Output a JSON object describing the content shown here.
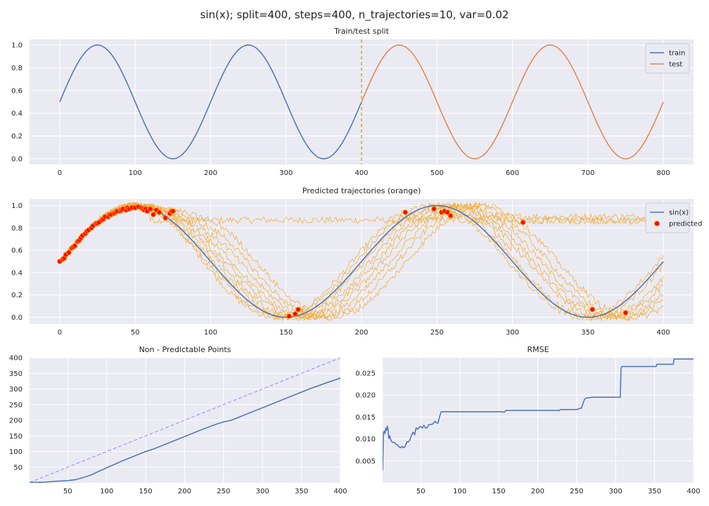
{
  "figure": {
    "suptitle": "sin(x); split=400, steps=400, n_trajectories=10, var=0.02"
  },
  "colors": {
    "background": "#eaeaf2",
    "grid": "#ffffff",
    "blue": "#4c72b0",
    "orange": "#dd8452",
    "traj": "#f5a623",
    "split_line": "#f0a020",
    "pred_face": "#ff0000",
    "pred_edge": "#ff8c00",
    "diag": "#9999ff"
  },
  "chart_data": [
    {
      "id": "train-test",
      "type": "line",
      "title": "Train/test split",
      "xlim": [
        -40,
        840
      ],
      "ylim": [
        -0.05,
        1.05
      ],
      "xticks": [
        0,
        100,
        200,
        300,
        400,
        500,
        600,
        700,
        800
      ],
      "yticks": [
        0.0,
        0.2,
        0.4,
        0.6,
        0.8,
        1.0
      ],
      "ytick_labels": [
        "0.0",
        "0.2",
        "0.4",
        "0.6",
        "0.8",
        "1.0"
      ],
      "function": "0.5 + 0.5*sin(2*pi*x/200)",
      "series": [
        {
          "name": "train",
          "x_range": [
            0,
            400
          ],
          "color": "#4c72b0"
        },
        {
          "name": "test",
          "x_range": [
            400,
            800
          ],
          "color": "#dd8452"
        }
      ],
      "vline": {
        "x": 400,
        "style": "dashed",
        "color": "#f0a020"
      },
      "legend": "top-right"
    },
    {
      "id": "trajectories",
      "type": "line",
      "title": "Predicted trajectories (orange)",
      "xlim": [
        -20,
        420
      ],
      "ylim": [
        -0.06,
        1.06
      ],
      "xticks": [
        0,
        50,
        100,
        150,
        200,
        250,
        300,
        350,
        400
      ],
      "yticks": [
        0.0,
        0.2,
        0.4,
        0.6,
        0.8,
        1.0
      ],
      "ytick_labels": [
        "0.0",
        "0.2",
        "0.4",
        "0.6",
        "0.8",
        "1.0"
      ],
      "series": [
        {
          "name": "sin(x)",
          "function": "0.5 + 0.5*sin(2*pi*x/200)",
          "x_range": [
            0,
            400
          ],
          "color": "#4c72b0"
        }
      ],
      "trajectories": [
        {
          "id": 1,
          "phase_shift": 0,
          "plateau": 0.87,
          "plateau_from": 60
        },
        {
          "id": 2,
          "phase_shift": -6,
          "plateau": 0.9,
          "plateau_from": 230
        },
        {
          "id": 3,
          "phase_shift": -3,
          "plateau": null,
          "plateau_from": null
        },
        {
          "id": 4,
          "phase_shift": 2,
          "plateau": null,
          "plateau_from": null
        },
        {
          "id": 5,
          "phase_shift": 6,
          "plateau": 0.86,
          "plateau_from": 300
        },
        {
          "id": 6,
          "phase_shift": 10,
          "plateau": null,
          "plateau_from": null
        },
        {
          "id": 7,
          "phase_shift": 14,
          "plateau": null,
          "plateau_from": null
        },
        {
          "id": 8,
          "phase_shift": 19,
          "plateau": null,
          "plateau_from": null
        },
        {
          "id": 9,
          "phase_shift": 24,
          "plateau": null,
          "plateau_from": null
        },
        {
          "id": 10,
          "phase_shift": 30,
          "plateau": null,
          "plateau_from": null
        }
      ],
      "predicted_points": {
        "name": "predicted",
        "x": [
          0,
          2,
          3,
          4,
          6,
          8,
          9,
          10,
          12,
          13,
          14,
          15,
          17,
          18,
          19,
          21,
          22,
          24,
          25,
          26,
          28,
          29,
          30,
          32,
          33,
          34,
          36,
          37,
          38,
          40,
          41,
          42,
          44,
          45,
          46,
          48,
          50,
          52,
          54,
          55,
          56,
          57,
          58,
          60,
          62,
          64,
          66,
          70,
          73,
          74,
          75,
          152,
          156,
          158,
          229,
          248,
          253,
          255,
          257,
          259,
          307,
          353,
          375
        ],
        "y": [
          0.5,
          0.52,
          0.53,
          0.56,
          0.58,
          0.62,
          0.63,
          0.64,
          0.68,
          0.69,
          0.71,
          0.73,
          0.75,
          0.77,
          0.78,
          0.8,
          0.82,
          0.84,
          0.84,
          0.85,
          0.87,
          0.88,
          0.9,
          0.9,
          0.92,
          0.92,
          0.93,
          0.94,
          0.95,
          0.95,
          0.96,
          0.97,
          0.96,
          0.98,
          0.97,
          0.98,
          0.98,
          0.99,
          0.98,
          0.97,
          0.96,
          0.97,
          0.95,
          0.97,
          0.92,
          0.96,
          0.94,
          0.89,
          0.93,
          0.95,
          0.95,
          0.01,
          0.03,
          0.07,
          0.94,
          0.97,
          0.94,
          0.95,
          0.94,
          0.91,
          0.85,
          0.07,
          0.04
        ]
      },
      "legend": "top-right"
    },
    {
      "id": "non-predictable",
      "type": "line",
      "title": "Non - Predictable Points",
      "xlim": [
        1,
        400
      ],
      "ylim": [
        0,
        400
      ],
      "xticks": [
        50,
        100,
        150,
        200,
        250,
        300,
        350,
        400
      ],
      "yticks": [
        50,
        100,
        150,
        200,
        250,
        300,
        350,
        400
      ],
      "series": [
        {
          "name": "",
          "color": "#4c72b0",
          "x": [
            1,
            20,
            35,
            50,
            60,
            70,
            80,
            90,
            100,
            120,
            140,
            150,
            160,
            180,
            200,
            220,
            240,
            250,
            260,
            280,
            300,
            320,
            340,
            360,
            380,
            400
          ],
          "y": [
            1,
            2,
            5,
            7,
            10,
            17,
            25,
            37,
            48,
            70,
            90,
            100,
            108,
            128,
            148,
            168,
            187,
            195,
            200,
            220,
            240,
            260,
            280,
            300,
            318,
            335
          ]
        }
      ],
      "diagonal": {
        "style": "dashed",
        "color": "#9999ff",
        "from": [
          1,
          1
        ],
        "to": [
          400,
          400
        ]
      }
    },
    {
      "id": "rmse",
      "type": "line",
      "title": "RMSE",
      "xlim": [
        1,
        400
      ],
      "ylim": [
        0.0,
        0.0285
      ],
      "xticks": [
        50,
        100,
        150,
        200,
        250,
        300,
        350,
        400
      ],
      "yticks": [
        0.005,
        0.01,
        0.015,
        0.02,
        0.025
      ],
      "ytick_labels": [
        "0.005",
        "0.010",
        "0.015",
        "0.020",
        "0.025"
      ],
      "series": [
        {
          "name": "",
          "color": "#4c72b0",
          "x": [
            1,
            2,
            3,
            4,
            5,
            6,
            7,
            8,
            9,
            10,
            12,
            14,
            16,
            18,
            20,
            22,
            24,
            26,
            28,
            30,
            32,
            34,
            36,
            38,
            40,
            42,
            44,
            46,
            48,
            50,
            52,
            54,
            56,
            58,
            60,
            62,
            64,
            66,
            68,
            70,
            72,
            74,
            76,
            80,
            90,
            100,
            110,
            120,
            130,
            140,
            150,
            155,
            156,
            157,
            158,
            159,
            160,
            170,
            180,
            190,
            200,
            210,
            220,
            228,
            229,
            230,
            240,
            250,
            252,
            254,
            256,
            258,
            260,
            262,
            270,
            280,
            290,
            300,
            306,
            307,
            308,
            320,
            330,
            340,
            350,
            352,
            353,
            360,
            370,
            374,
            375,
            380,
            390,
            400
          ],
          "y": [
            0.0028,
            0.0115,
            0.0117,
            0.0113,
            0.0123,
            0.012,
            0.013,
            0.012,
            0.01,
            0.0108,
            0.0095,
            0.0092,
            0.0092,
            0.0088,
            0.0086,
            0.0082,
            0.008,
            0.0083,
            0.008,
            0.0083,
            0.0093,
            0.0093,
            0.0098,
            0.0108,
            0.0115,
            0.011,
            0.0125,
            0.0122,
            0.0127,
            0.0128,
            0.0125,
            0.0131,
            0.0125,
            0.0125,
            0.0132,
            0.0133,
            0.0133,
            0.0135,
            0.014,
            0.0137,
            0.0136,
            0.015,
            0.0162,
            0.0162,
            0.0162,
            0.0162,
            0.0162,
            0.0162,
            0.0162,
            0.0162,
            0.0162,
            0.0162,
            0.0161,
            0.0161,
            0.0162,
            0.0165,
            0.0165,
            0.0165,
            0.0165,
            0.0165,
            0.0165,
            0.0165,
            0.0165,
            0.0165,
            0.0167,
            0.0167,
            0.0167,
            0.0167,
            0.0168,
            0.017,
            0.017,
            0.018,
            0.019,
            0.0193,
            0.0195,
            0.0195,
            0.0195,
            0.0195,
            0.0195,
            0.026,
            0.0265,
            0.0265,
            0.0265,
            0.0265,
            0.0265,
            0.0265,
            0.027,
            0.027,
            0.027,
            0.027,
            0.0282,
            0.0282,
            0.0282,
            0.0282
          ]
        }
      ]
    }
  ]
}
